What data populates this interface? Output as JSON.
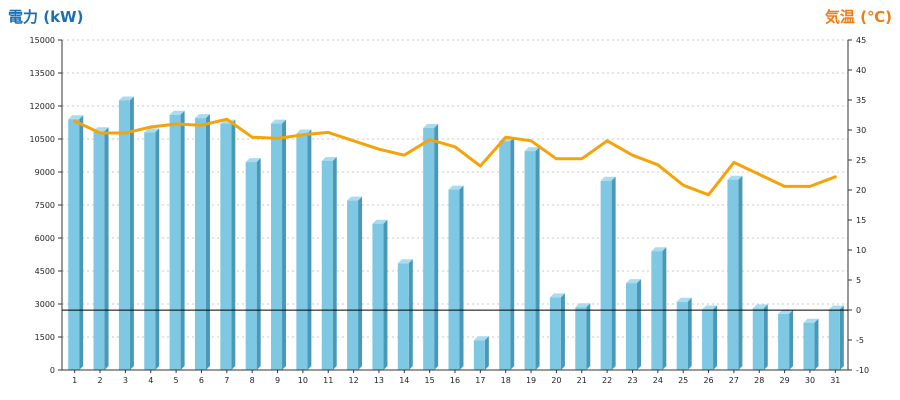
{
  "chart_data": {
    "type": "bar",
    "title": "",
    "y_left_label": "電力 (kW)",
    "y_right_label": "気温 (℃)",
    "categories": [
      "1",
      "2",
      "3",
      "4",
      "5",
      "6",
      "7",
      "8",
      "9",
      "10",
      "11",
      "12",
      "13",
      "14",
      "15",
      "16",
      "17",
      "18",
      "19",
      "20",
      "21",
      "22",
      "23",
      "24",
      "25",
      "26",
      "27",
      "28",
      "29",
      "30",
      "31"
    ],
    "y_left_ticks": [
      "0",
      "1500",
      "3000",
      "4500",
      "6000",
      "7500",
      "9000",
      "10500",
      "12000",
      "13500",
      "15000"
    ],
    "y_right_ticks": [
      "-10",
      "-5",
      "0",
      "5",
      "10",
      "15",
      "20",
      "25",
      "30",
      "35",
      "40",
      "45"
    ],
    "y_left_range": [
      0,
      15000
    ],
    "y_right_range": [
      -10,
      45
    ],
    "grid": true,
    "reference_line_y": 2720,
    "series": [
      {
        "axis": "left",
        "type": "bar",
        "color": "#7ec8e3",
        "values": [
          11400,
          10850,
          12250,
          10800,
          11600,
          11450,
          11200,
          9450,
          11200,
          10750,
          9500,
          7700,
          6650,
          4850,
          11000,
          8200,
          1350,
          10400,
          9950,
          3300,
          2850,
          8600,
          3950,
          5400,
          3100,
          2750,
          8650,
          2800,
          2550,
          2150,
          2750
        ]
      },
      {
        "axis": "right",
        "type": "line",
        "color": "#f5a30a",
        "values": [
          31.5,
          29.5,
          29.5,
          30.5,
          31.0,
          30.8,
          31.8,
          28.8,
          28.6,
          29.2,
          29.6,
          28.2,
          26.8,
          25.8,
          28.4,
          27.2,
          24.0,
          28.8,
          28.2,
          25.2,
          25.2,
          28.2,
          25.8,
          24.2,
          20.8,
          19.2,
          24.6,
          22.6,
          20.6,
          20.6,
          22.2
        ]
      }
    ],
    "colors": {
      "left_title": "#1a6fb5",
      "right_title": "#f07d14",
      "bar_front": "#7ec8e3",
      "bar_side": "#4a98b8",
      "bar_top": "#a9dcef",
      "line": "#f5a30a"
    }
  }
}
